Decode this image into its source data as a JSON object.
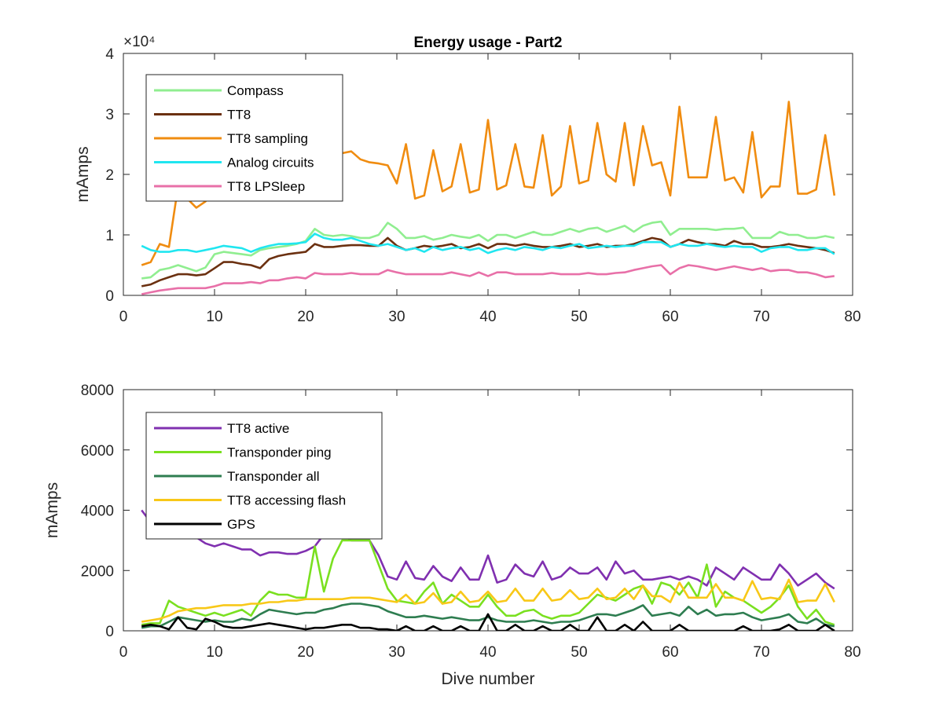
{
  "chart_data": [
    {
      "type": "line",
      "title": "Energy usage - Part2",
      "xlabel": "",
      "ylabel": "mAmps",
      "y_exponent_label": "×10⁴",
      "xlim": [
        0,
        80
      ],
      "ylim": [
        0,
        4
      ],
      "x_ticks": [
        "0",
        "10",
        "20",
        "30",
        "40",
        "50",
        "60",
        "70",
        "80"
      ],
      "y_ticks": [
        "0",
        "1",
        "2",
        "3",
        "4"
      ],
      "legend_position": "top-left",
      "x": [
        2,
        3,
        4,
        5,
        6,
        7,
        8,
        9,
        10,
        11,
        12,
        13,
        14,
        15,
        16,
        17,
        18,
        19,
        20,
        21,
        22,
        23,
        24,
        25,
        26,
        27,
        28,
        29,
        30,
        31,
        32,
        33,
        34,
        35,
        36,
        37,
        38,
        39,
        40,
        41,
        42,
        43,
        44,
        45,
        46,
        47,
        48,
        49,
        50,
        51,
        52,
        53,
        54,
        55,
        56,
        57,
        58,
        59,
        60,
        61,
        62,
        63,
        64,
        65,
        66,
        67,
        68,
        69,
        70,
        71,
        72,
        73,
        74,
        75,
        76,
        77,
        78
      ],
      "series": [
        {
          "name": "Compass",
          "color": "#90ee90",
          "values": [
            0.28,
            0.3,
            0.42,
            0.45,
            0.5,
            0.45,
            0.4,
            0.46,
            0.68,
            0.72,
            0.7,
            0.68,
            0.66,
            0.75,
            0.78,
            0.8,
            0.82,
            0.85,
            0.9,
            1.1,
            1.0,
            0.98,
            1.0,
            0.98,
            0.95,
            0.95,
            1.0,
            1.2,
            1.1,
            0.95,
            0.95,
            0.98,
            0.92,
            0.95,
            1.0,
            0.97,
            0.95,
            1.0,
            0.9,
            1.0,
            1.0,
            0.95,
            1.0,
            1.05,
            1.0,
            1.0,
            1.05,
            1.1,
            1.05,
            1.1,
            1.12,
            1.05,
            1.1,
            1.15,
            1.05,
            1.15,
            1.2,
            1.22,
            1.0,
            1.1,
            1.1,
            1.1,
            1.1,
            1.08,
            1.1,
            1.1,
            1.12,
            0.95,
            0.95,
            0.95,
            1.05,
            1.0,
            1.0,
            0.95,
            0.95,
            0.98,
            0.95
          ]
        },
        {
          "name": "TT8",
          "color": "#6b3010",
          "values": [
            0.15,
            0.18,
            0.25,
            0.3,
            0.35,
            0.35,
            0.33,
            0.35,
            0.45,
            0.55,
            0.55,
            0.52,
            0.5,
            0.45,
            0.6,
            0.65,
            0.68,
            0.7,
            0.72,
            0.85,
            0.8,
            0.8,
            0.82,
            0.83,
            0.83,
            0.82,
            0.82,
            0.95,
            0.82,
            0.75,
            0.78,
            0.82,
            0.8,
            0.82,
            0.85,
            0.78,
            0.8,
            0.85,
            0.78,
            0.85,
            0.85,
            0.82,
            0.85,
            0.82,
            0.8,
            0.8,
            0.82,
            0.85,
            0.8,
            0.82,
            0.85,
            0.8,
            0.82,
            0.82,
            0.85,
            0.9,
            0.95,
            0.92,
            0.8,
            0.85,
            0.92,
            0.88,
            0.85,
            0.85,
            0.82,
            0.9,
            0.85,
            0.85,
            0.8,
            0.8,
            0.82,
            0.85,
            0.82,
            0.8,
            0.78,
            0.75,
            0.7
          ]
        },
        {
          "name": "TT8 sampling",
          "color": "#f08c10",
          "values": [
            0.5,
            0.55,
            0.85,
            0.8,
            1.8,
            1.6,
            1.45,
            1.55,
            1.75,
            1.7,
            1.75,
            1.8,
            1.85,
            1.9,
            1.95,
            2.0,
            2.05,
            2.1,
            2.15,
            2.2,
            2.25,
            2.3,
            2.35,
            2.38,
            2.25,
            2.2,
            2.18,
            2.15,
            1.85,
            2.5,
            1.6,
            1.65,
            2.4,
            1.72,
            1.8,
            2.5,
            1.7,
            1.75,
            2.9,
            1.75,
            1.82,
            2.5,
            1.8,
            1.78,
            2.65,
            1.65,
            1.8,
            2.8,
            1.85,
            1.9,
            2.85,
            2.0,
            1.88,
            2.85,
            1.82,
            2.8,
            2.15,
            2.2,
            1.65,
            3.12,
            1.95,
            1.95,
            1.95,
            2.95,
            1.9,
            1.95,
            1.7,
            2.7,
            1.62,
            1.8,
            1.8,
            3.2,
            1.68,
            1.68,
            1.75,
            2.65,
            1.65
          ]
        },
        {
          "name": "Analog circuits",
          "color": "#20e6f0",
          "values": [
            0.82,
            0.75,
            0.72,
            0.72,
            0.75,
            0.75,
            0.72,
            0.75,
            0.78,
            0.82,
            0.8,
            0.78,
            0.72,
            0.78,
            0.82,
            0.85,
            0.85,
            0.86,
            0.88,
            1.02,
            0.95,
            0.92,
            0.92,
            0.95,
            0.9,
            0.85,
            0.82,
            0.85,
            0.8,
            0.75,
            0.78,
            0.72,
            0.8,
            0.75,
            0.78,
            0.8,
            0.75,
            0.78,
            0.7,
            0.75,
            0.78,
            0.75,
            0.8,
            0.78,
            0.75,
            0.8,
            0.78,
            0.82,
            0.85,
            0.78,
            0.8,
            0.82,
            0.8,
            0.82,
            0.82,
            0.88,
            0.88,
            0.88,
            0.8,
            0.85,
            0.82,
            0.82,
            0.85,
            0.82,
            0.8,
            0.82,
            0.8,
            0.8,
            0.72,
            0.78,
            0.8,
            0.8,
            0.75,
            0.75,
            0.78,
            0.78,
            0.68
          ]
        },
        {
          "name": "TT8 LPSleep",
          "color": "#e870a8",
          "values": [
            0.02,
            0.05,
            0.08,
            0.1,
            0.12,
            0.12,
            0.12,
            0.12,
            0.15,
            0.2,
            0.2,
            0.2,
            0.22,
            0.2,
            0.25,
            0.25,
            0.28,
            0.3,
            0.28,
            0.37,
            0.35,
            0.35,
            0.35,
            0.37,
            0.35,
            0.35,
            0.35,
            0.42,
            0.38,
            0.35,
            0.35,
            0.35,
            0.35,
            0.35,
            0.38,
            0.35,
            0.32,
            0.38,
            0.32,
            0.38,
            0.38,
            0.35,
            0.35,
            0.35,
            0.35,
            0.37,
            0.35,
            0.35,
            0.35,
            0.37,
            0.35,
            0.35,
            0.37,
            0.38,
            0.42,
            0.45,
            0.48,
            0.5,
            0.35,
            0.45,
            0.5,
            0.48,
            0.45,
            0.42,
            0.45,
            0.48,
            0.45,
            0.42,
            0.45,
            0.4,
            0.42,
            0.42,
            0.38,
            0.38,
            0.35,
            0.3,
            0.32
          ]
        }
      ]
    },
    {
      "type": "line",
      "title": "",
      "xlabel": "Dive number",
      "ylabel": "mAmps",
      "xlim": [
        0,
        80
      ],
      "ylim": [
        0,
        8000
      ],
      "x_ticks": [
        "0",
        "10",
        "20",
        "30",
        "40",
        "50",
        "60",
        "70",
        "80"
      ],
      "y_ticks": [
        "0",
        "2000",
        "4000",
        "6000",
        "8000"
      ],
      "legend_position": "top-left",
      "x": [
        2,
        3,
        4,
        5,
        6,
        7,
        8,
        9,
        10,
        11,
        12,
        13,
        14,
        15,
        16,
        17,
        18,
        19,
        20,
        21,
        22,
        23,
        24,
        25,
        26,
        27,
        28,
        29,
        30,
        31,
        32,
        33,
        34,
        35,
        36,
        37,
        38,
        39,
        40,
        41,
        42,
        43,
        44,
        45,
        46,
        47,
        48,
        49,
        50,
        51,
        52,
        53,
        54,
        55,
        56,
        57,
        58,
        59,
        60,
        61,
        62,
        63,
        64,
        65,
        66,
        67,
        68,
        69,
        70,
        71,
        72,
        73,
        74,
        75,
        76,
        77,
        78
      ],
      "series": [
        {
          "name": "TT8 active",
          "color": "#8030b0",
          "values": [
            4000,
            3600,
            3500,
            3400,
            3300,
            3200,
            3100,
            2900,
            2800,
            2900,
            2800,
            2700,
            2700,
            2500,
            2600,
            2600,
            2550,
            2550,
            2650,
            2800,
            3200,
            3500,
            3200,
            3000,
            3000,
            3000,
            2500,
            1800,
            1700,
            2300,
            1750,
            1700,
            2150,
            1800,
            1650,
            2100,
            1700,
            1700,
            2500,
            1600,
            1700,
            2200,
            1900,
            1800,
            2300,
            1700,
            1800,
            2100,
            1900,
            1900,
            2100,
            1700,
            2300,
            1900,
            2000,
            1700,
            1700,
            1750,
            1800,
            1700,
            1800,
            1700,
            1500,
            2100,
            1900,
            1700,
            2100,
            1900,
            1700,
            1700,
            2200,
            1900,
            1500,
            1700,
            1900,
            1600,
            1400
          ]
        },
        {
          "name": "Transponder ping",
          "color": "#7ae020",
          "values": [
            200,
            250,
            250,
            1000,
            800,
            700,
            600,
            500,
            600,
            500,
            600,
            700,
            500,
            1000,
            1300,
            1200,
            1200,
            1100,
            1100,
            2800,
            1300,
            2400,
            3000,
            3000,
            3000,
            3000,
            2200,
            1400,
            1000,
            950,
            900,
            1300,
            1600,
            900,
            1200,
            1000,
            800,
            800,
            1200,
            800,
            500,
            500,
            650,
            700,
            500,
            400,
            500,
            500,
            600,
            900,
            1200,
            1100,
            1000,
            1200,
            1400,
            1500,
            900,
            1600,
            1500,
            1200,
            1600,
            1100,
            2200,
            800,
            1300,
            1100,
            1000,
            800,
            600,
            800,
            1100,
            1500,
            800,
            400,
            700,
            300,
            200
          ]
        },
        {
          "name": "Transponder all",
          "color": "#2e7d50",
          "values": [
            100,
            150,
            150,
            300,
            450,
            400,
            350,
            300,
            350,
            300,
            300,
            400,
            350,
            550,
            700,
            650,
            600,
            550,
            600,
            600,
            700,
            750,
            850,
            900,
            900,
            850,
            800,
            650,
            550,
            450,
            450,
            500,
            450,
            400,
            450,
            400,
            350,
            350,
            450,
            350,
            300,
            300,
            300,
            350,
            300,
            250,
            300,
            300,
            350,
            450,
            550,
            550,
            500,
            600,
            700,
            850,
            500,
            550,
            600,
            500,
            800,
            550,
            700,
            500,
            550,
            550,
            600,
            450,
            350,
            400,
            450,
            550,
            300,
            250,
            400,
            200,
            150
          ]
        },
        {
          "name": "TT8 accessing flash",
          "color": "#f8c818",
          "values": [
            300,
            350,
            400,
            500,
            650,
            700,
            750,
            750,
            800,
            850,
            850,
            850,
            900,
            900,
            950,
            950,
            1000,
            1000,
            1050,
            1050,
            1050,
            1050,
            1050,
            1100,
            1100,
            1100,
            1050,
            1000,
            950,
            1200,
            900,
            950,
            1250,
            900,
            950,
            1300,
            950,
            1000,
            1300,
            950,
            1000,
            1400,
            1000,
            1000,
            1400,
            1000,
            1050,
            1350,
            1050,
            1100,
            1400,
            1050,
            1100,
            1400,
            1050,
            1500,
            1150,
            1150,
            950,
            1600,
            1100,
            1100,
            1100,
            1550,
            1100,
            1100,
            1000,
            1650,
            1050,
            1100,
            1050,
            1700,
            950,
            1000,
            1000,
            1550,
            950
          ]
        },
        {
          "name": "GPS",
          "color": "#000000",
          "values": [
            150,
            200,
            150,
            50,
            450,
            100,
            50,
            400,
            300,
            150,
            100,
            100,
            150,
            200,
            250,
            200,
            150,
            100,
            50,
            100,
            100,
            150,
            200,
            200,
            100,
            100,
            50,
            50,
            0,
            150,
            0,
            0,
            150,
            0,
            0,
            150,
            0,
            0,
            550,
            0,
            0,
            200,
            0,
            0,
            150,
            0,
            0,
            200,
            0,
            0,
            450,
            0,
            0,
            200,
            0,
            300,
            0,
            0,
            0,
            200,
            0,
            0,
            0,
            0,
            0,
            0,
            150,
            0,
            0,
            0,
            50,
            200,
            0,
            0,
            0,
            200,
            0
          ]
        }
      ]
    }
  ]
}
